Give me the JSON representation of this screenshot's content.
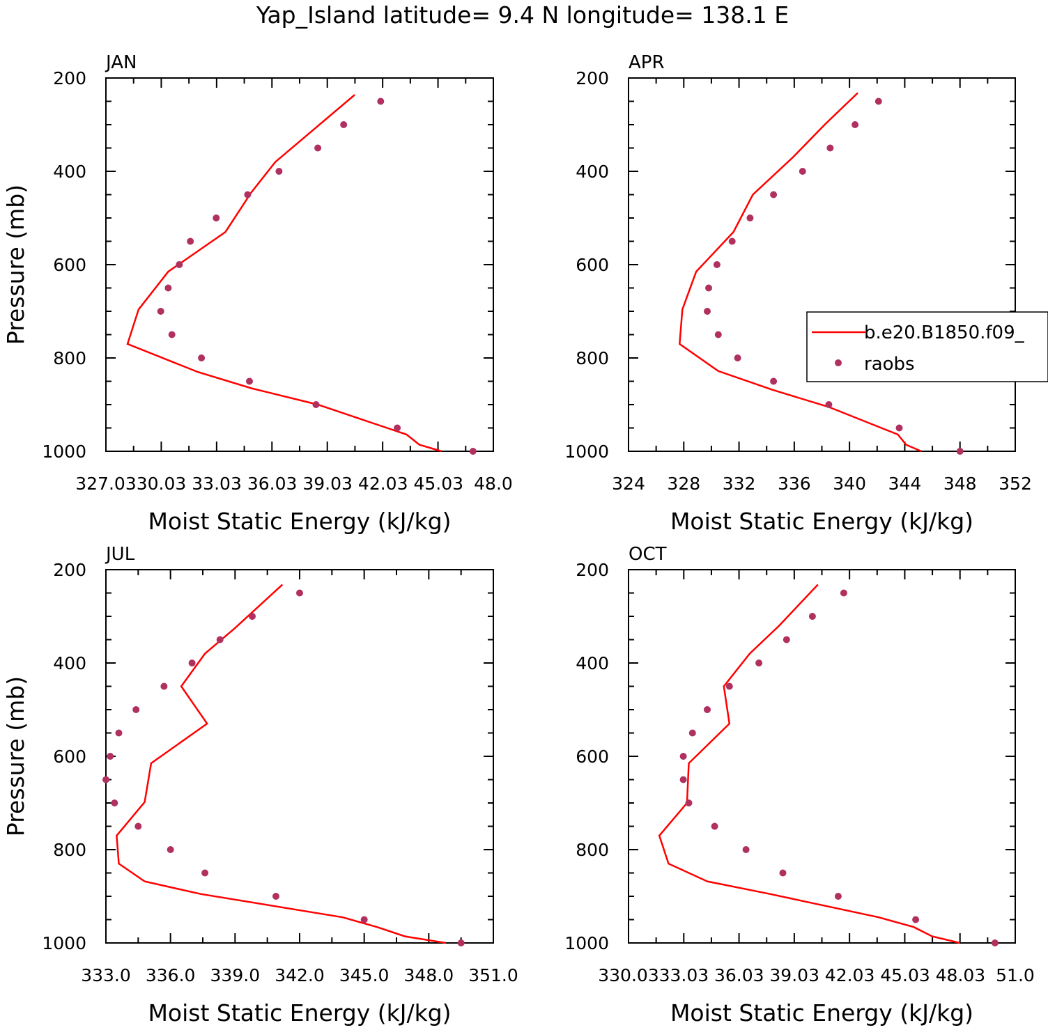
{
  "figure_title": "Yap_Island  latitude= 9.4 N longitude= 138.1 E",
  "legend": {
    "model_label": "b.e20.B1850.f09_",
    "obs_label": "raobs",
    "location": "right-middle, attached to APR panel"
  },
  "colors": {
    "model": "#ff0000",
    "obs": "#b03060",
    "axis": "#000000"
  },
  "chart_data": [
    {
      "type": "line",
      "panel": "JAN",
      "title": "JAN",
      "xlabel": "Moist Static Energy (kJ/kg)",
      "ylabel": "Pressure (mb)",
      "xlim": [
        327.03,
        348.0
      ],
      "ylim": [
        1000,
        200
      ],
      "xticks": [
        327.03,
        330.03,
        333.03,
        336.03,
        339.03,
        342.03,
        345.03,
        348.0
      ],
      "xtick_labels": [
        "327.03",
        "30.03",
        "33.03",
        "36.03",
        "39.03",
        "42.03",
        "45.03",
        "48.0"
      ],
      "yticks": [
        200,
        400,
        600,
        800,
        1000
      ],
      "ytick_labels": [
        "200",
        "400",
        "600",
        "800",
        "1000"
      ],
      "series": [
        {
          "name": "b.e20.B1850.f09_",
          "kind": "line",
          "x": [
            340.5,
            336.2,
            334.9,
            333.5,
            330.4,
            328.8,
            328.2,
            332.0,
            334.9,
            338.5,
            341.8,
            343.3,
            344.0,
            345.2
          ],
          "y": [
            236,
            380,
            445,
            530,
            615,
            696,
            770,
            830,
            865,
            900,
            944,
            964,
            986,
            1000
          ]
        },
        {
          "name": "raobs",
          "kind": "scatter",
          "x": [
            341.9,
            339.9,
            338.5,
            336.4,
            334.7,
            333.0,
            331.6,
            331.0,
            330.4,
            330.0,
            330.6,
            332.2,
            334.8,
            338.4,
            342.8,
            346.9
          ],
          "y": [
            250,
            300,
            350,
            400,
            450,
            500,
            550,
            600,
            650,
            700,
            750,
            800,
            850,
            900,
            950,
            1000
          ]
        }
      ]
    },
    {
      "type": "line",
      "panel": "APR",
      "title": "APR",
      "xlabel": "Moist Static Energy (kJ/kg)",
      "ylabel": "",
      "xlim": [
        324,
        352
      ],
      "ylim": [
        1000,
        200
      ],
      "xticks": [
        324,
        328,
        332,
        336,
        340,
        344,
        348,
        352
      ],
      "xtick_labels": [
        "324",
        "328",
        "332",
        "336",
        "340",
        "344",
        "348",
        "352"
      ],
      "yticks": [
        200,
        400,
        600,
        800,
        1000
      ],
      "ytick_labels": [
        "200",
        "400",
        "600",
        "800",
        "1000"
      ],
      "series": [
        {
          "name": "b.e20.B1850.f09_",
          "kind": "line",
          "x": [
            340.6,
            338.2,
            335.9,
            333.0,
            331.6,
            328.9,
            327.9,
            327.7,
            330.5,
            334.4,
            338.5,
            341.8,
            343.5,
            344.1,
            345.2
          ],
          "y": [
            232,
            300,
            370,
            450,
            530,
            615,
            696,
            770,
            828,
            868,
            905,
            944,
            964,
            986,
            1000
          ]
        },
        {
          "name": "raobs",
          "kind": "scatter",
          "x": [
            342.1,
            340.4,
            338.6,
            336.6,
            334.5,
            332.8,
            331.5,
            330.4,
            329.8,
            329.7,
            330.5,
            331.9,
            334.5,
            338.5,
            343.6,
            348.0
          ],
          "y": [
            250,
            300,
            350,
            400,
            450,
            500,
            550,
            600,
            650,
            700,
            750,
            800,
            850,
            900,
            950,
            1000
          ]
        }
      ]
    },
    {
      "type": "line",
      "panel": "JUL",
      "title": "JUL",
      "xlabel": "Moist Static Energy (kJ/kg)",
      "ylabel": "Pressure (mb)",
      "xlim": [
        333.0,
        351.0
      ],
      "ylim": [
        1000,
        200
      ],
      "xticks": [
        333,
        336,
        339,
        342,
        345,
        348,
        351
      ],
      "xtick_labels": [
        "333.0",
        "336.0",
        "339.0",
        "342.0",
        "345.0",
        "348.0",
        "351.0"
      ],
      "yticks": [
        200,
        400,
        600,
        800,
        1000
      ],
      "ytick_labels": [
        "200",
        "400",
        "600",
        "800",
        "1000"
      ],
      "series": [
        {
          "name": "b.e20.B1850.f09_",
          "kind": "line",
          "x": [
            341.2,
            339.0,
            337.6,
            336.5,
            337.7,
            335.1,
            334.8,
            333.5,
            333.6,
            334.8,
            337.4,
            344.0,
            345.6,
            346.9,
            348.8
          ],
          "y": [
            232,
            325,
            380,
            450,
            530,
            615,
            698,
            770,
            830,
            868,
            895,
            945,
            966,
            986,
            1000
          ]
        },
        {
          "name": "raobs",
          "kind": "scatter",
          "x": [
            342.0,
            339.8,
            338.3,
            337.0,
            335.7,
            334.4,
            333.6,
            333.2,
            333.0,
            333.4,
            334.5,
            336.0,
            337.6,
            340.9,
            345.0,
            349.5
          ],
          "y": [
            250,
            300,
            350,
            400,
            450,
            500,
            550,
            600,
            650,
            700,
            750,
            800,
            850,
            900,
            950,
            1000
          ]
        }
      ]
    },
    {
      "type": "line",
      "panel": "OCT",
      "title": "OCT",
      "xlabel": "Moist Static Energy (kJ/kg)",
      "ylabel": "",
      "xlim": [
        330.03,
        351.0
      ],
      "ylim": [
        1000,
        200
      ],
      "xticks": [
        330.03,
        333.03,
        336.03,
        339.03,
        342.03,
        345.03,
        348.03,
        351.0
      ],
      "xtick_labels": [
        "330.03",
        "33.03",
        "36.03",
        "39.03",
        "42.03",
        "45.03",
        "48.03",
        "51.0"
      ],
      "yticks": [
        200,
        400,
        600,
        800,
        1000
      ],
      "ytick_labels": [
        "200",
        "400",
        "600",
        "800",
        "1000"
      ],
      "series": [
        {
          "name": "b.e20.B1850.f09_",
          "kind": "line",
          "x": [
            340.3,
            338.2,
            336.6,
            335.2,
            335.5,
            333.3,
            333.2,
            331.7,
            332.2,
            334.3,
            337.7,
            343.6,
            345.5,
            346.5,
            348.0
          ],
          "y": [
            232,
            320,
            380,
            450,
            530,
            615,
            700,
            770,
            830,
            868,
            895,
            945,
            966,
            986,
            1000
          ]
        },
        {
          "name": "raobs",
          "kind": "scatter",
          "x": [
            341.7,
            340.0,
            338.6,
            337.1,
            335.5,
            334.3,
            333.5,
            333.0,
            333.0,
            333.3,
            334.7,
            336.4,
            338.4,
            341.4,
            345.6,
            349.9
          ],
          "y": [
            250,
            300,
            350,
            400,
            450,
            500,
            550,
            600,
            650,
            700,
            750,
            800,
            850,
            900,
            950,
            1000
          ]
        }
      ]
    }
  ]
}
